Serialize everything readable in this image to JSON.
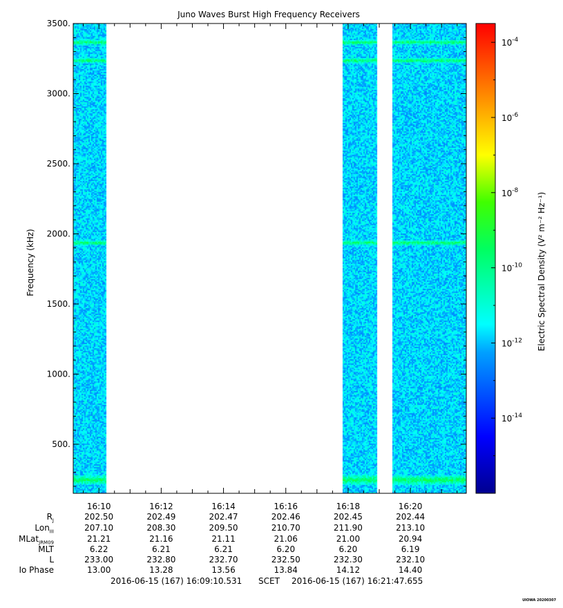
{
  "chart_data": {
    "type": "heatmap",
    "title": "Juno Waves Burst High Frequency Receivers",
    "ylabel": "Frequency (kHz)",
    "ylim": [
      150,
      3500
    ],
    "y_ticks": [
      "500.",
      "1000.",
      "1500.",
      "2000.",
      "2500.",
      "3000.",
      "3500."
    ],
    "x_ticks": [
      "16:10",
      "16:12",
      "16:14",
      "16:16",
      "16:18",
      "16:20"
    ],
    "time_range": [
      "16:09:10.531",
      "16:21:47.655"
    ],
    "data_intervals": [
      [
        "16:09:10",
        "16:10:15"
      ],
      [
        "16:17:50",
        "16:18:55"
      ],
      [
        "16:19:25",
        "16:21:47"
      ]
    ],
    "emission_bands_khz": [
      250,
      1940,
      3240,
      3370
    ],
    "background_log_density": -11.8,
    "band_log_density": -9.5,
    "colorbar": {
      "label": "Electric Spectral Density (V² m⁻² Hz⁻¹)",
      "log_range": [
        -16,
        -3.5
      ],
      "tick_exponents": [
        "-14",
        "-12",
        "-10",
        "-8",
        "-6",
        "-4"
      ]
    }
  },
  "ephemeris": {
    "labels": [
      "R",
      "Lon",
      "MLat",
      "MLT",
      "L",
      "Io Phase"
    ],
    "label_subscripts": [
      "J",
      "III",
      "JRM09",
      "",
      "",
      ""
    ],
    "rows": [
      [
        "202.50",
        "202.49",
        "202.47",
        "202.46",
        "202.45",
        "202.44"
      ],
      [
        "207.10",
        "208.30",
        "209.50",
        "210.70",
        "211.90",
        "213.10"
      ],
      [
        "21.21",
        "21.16",
        "21.11",
        "21.06",
        "21.00",
        "20.94"
      ],
      [
        "6.22",
        "6.21",
        "6.21",
        "6.20",
        "6.20",
        "6.19"
      ],
      [
        "233.00",
        "232.80",
        "232.70",
        "232.50",
        "232.30",
        "232.10"
      ],
      [
        "13.00",
        "13.28",
        "13.56",
        "13.84",
        "14.12",
        "14.40"
      ]
    ]
  },
  "footer": {
    "start": "2016-06-15 (167) 16:09:10.531",
    "mid": "SCET",
    "end": "2016-06-15 (167) 16:21:47.655"
  },
  "credit": "UIOWA 20200307"
}
